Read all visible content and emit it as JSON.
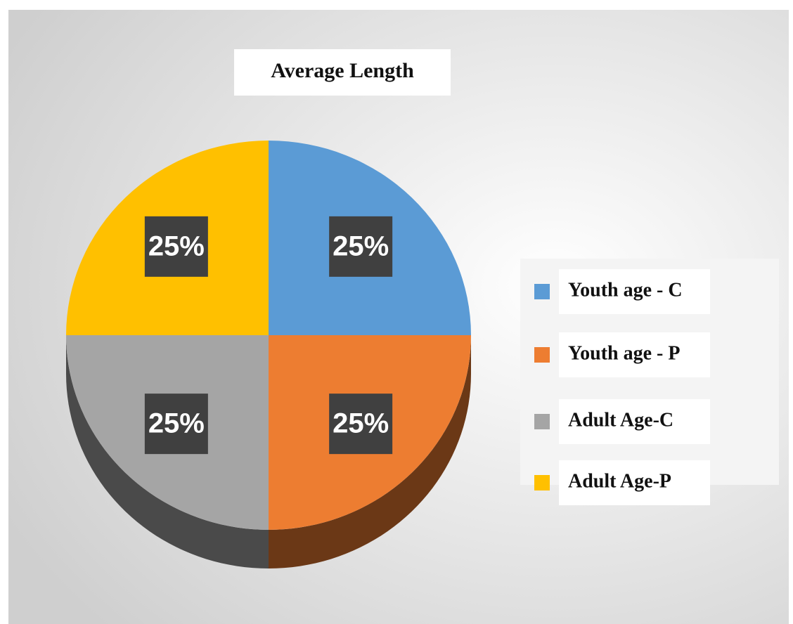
{
  "chart_data": {
    "type": "pie",
    "title": "Average Length",
    "categories": [
      "Youth age - C",
      "Youth age - P",
      "Adult Age-C",
      "Adult Age-P"
    ],
    "values": [
      25,
      25,
      25,
      25
    ],
    "value_labels": [
      "25%",
      "25%",
      "25%",
      "25%"
    ],
    "colors": [
      "#5b9bd5",
      "#ed7d31",
      "#a5a5a5",
      "#ffc000"
    ],
    "legend": "right"
  }
}
